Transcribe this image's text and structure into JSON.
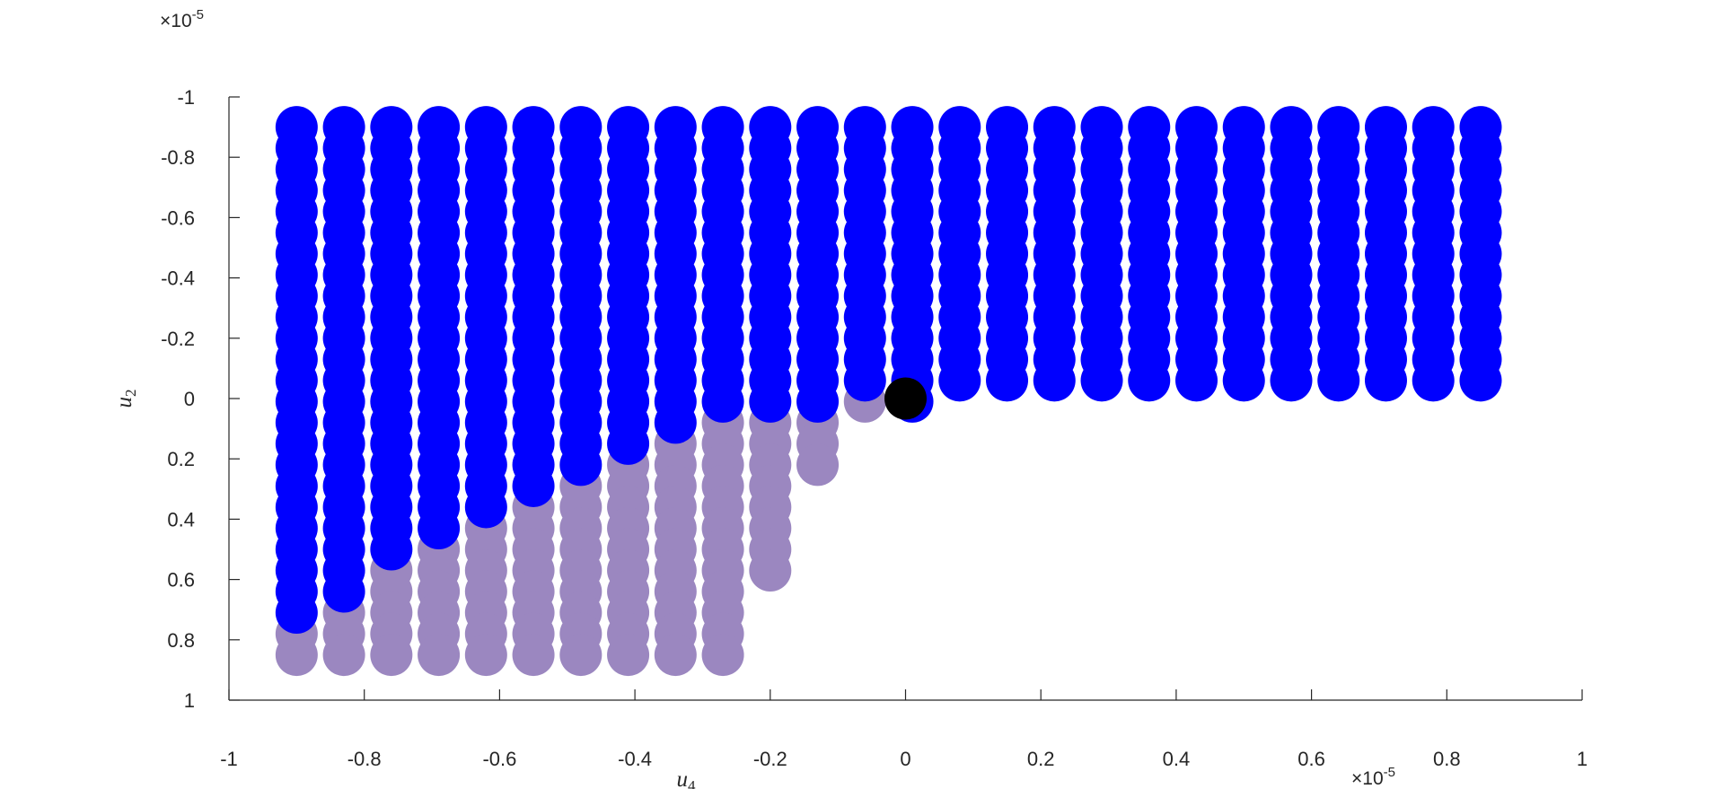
{
  "chart_data": {
    "type": "scatter",
    "x_exponent": {
      "base": "×10",
      "exp": "-5"
    },
    "y_exponent": {
      "base": "×10",
      "exp": "-5"
    },
    "xlabel": {
      "base": "u",
      "sub": "4"
    },
    "ylabel": {
      "base": "u",
      "sub": "2"
    },
    "xlim": [
      -1,
      1
    ],
    "ylim": [
      -1,
      1
    ],
    "y_reversed": true,
    "xticks": [
      -1,
      -0.8,
      -0.6,
      -0.4,
      -0.2,
      0,
      0.2,
      0.4,
      0.6,
      0.8,
      1
    ],
    "yticks": [
      -1,
      -0.8,
      -0.6,
      -0.4,
      -0.2,
      0,
      0.2,
      0.4,
      0.6,
      0.8,
      1
    ],
    "series": [
      {
        "color": "#9b87c0",
        "columns": [
          {
            "x": -0.9,
            "y": [
              0.78,
              0.85
            ]
          },
          {
            "x": -0.83,
            "y": [
              0.71,
              0.78,
              0.85
            ]
          },
          {
            "x": -0.76,
            "y": [
              0.57,
              0.64,
              0.71,
              0.78,
              0.85
            ]
          },
          {
            "x": -0.69,
            "y": [
              0.5,
              0.57,
              0.64,
              0.71,
              0.78,
              0.85
            ]
          },
          {
            "x": -0.62,
            "y": [
              0.43,
              0.5,
              0.57,
              0.64,
              0.71,
              0.78,
              0.85
            ]
          },
          {
            "x": -0.55,
            "y": [
              0.36,
              0.43,
              0.5,
              0.57,
              0.64,
              0.71,
              0.78,
              0.85
            ]
          },
          {
            "x": -0.48,
            "y": [
              0.29,
              0.36,
              0.43,
              0.5,
              0.57,
              0.64,
              0.71,
              0.78,
              0.85
            ]
          },
          {
            "x": -0.41,
            "y": [
              0.22,
              0.29,
              0.36,
              0.43,
              0.5,
              0.57,
              0.64,
              0.71,
              0.78,
              0.85
            ]
          },
          {
            "x": -0.34,
            "y": [
              0.15,
              0.22,
              0.29,
              0.36,
              0.43,
              0.5,
              0.57,
              0.64,
              0.71,
              0.78,
              0.85
            ]
          },
          {
            "x": -0.27,
            "y": [
              0.08,
              0.15,
              0.22,
              0.29,
              0.36,
              0.43,
              0.5,
              0.57,
              0.64,
              0.71,
              0.78,
              0.85
            ]
          },
          {
            "x": -0.2,
            "y": [
              0.08,
              0.15,
              0.22,
              0.29,
              0.36,
              0.43,
              0.5,
              0.57
            ]
          },
          {
            "x": -0.13,
            "y": [
              0.08,
              0.15,
              0.22
            ]
          },
          {
            "x": -0.06,
            "y": [
              0.01
            ]
          }
        ]
      },
      {
        "color": "#0000ff",
        "columns": [
          {
            "x": -0.9,
            "y": [
              -0.9,
              -0.83,
              -0.76,
              -0.69,
              -0.62,
              -0.55,
              -0.48,
              -0.41,
              -0.34,
              -0.27,
              -0.2,
              -0.13,
              -0.06,
              0.01,
              0.08,
              0.15,
              0.22,
              0.29,
              0.36,
              0.43,
              0.5,
              0.57,
              0.64,
              0.71
            ]
          },
          {
            "x": -0.83,
            "y": [
              -0.9,
              -0.83,
              -0.76,
              -0.69,
              -0.62,
              -0.55,
              -0.48,
              -0.41,
              -0.34,
              -0.27,
              -0.2,
              -0.13,
              -0.06,
              0.01,
              0.08,
              0.15,
              0.22,
              0.29,
              0.36,
              0.43,
              0.5,
              0.57,
              0.64
            ]
          },
          {
            "x": -0.76,
            "y": [
              -0.9,
              -0.83,
              -0.76,
              -0.69,
              -0.62,
              -0.55,
              -0.48,
              -0.41,
              -0.34,
              -0.27,
              -0.2,
              -0.13,
              -0.06,
              0.01,
              0.08,
              0.15,
              0.22,
              0.29,
              0.36,
              0.43,
              0.5
            ]
          },
          {
            "x": -0.69,
            "y": [
              -0.9,
              -0.83,
              -0.76,
              -0.69,
              -0.62,
              -0.55,
              -0.48,
              -0.41,
              -0.34,
              -0.27,
              -0.2,
              -0.13,
              -0.06,
              0.01,
              0.08,
              0.15,
              0.22,
              0.29,
              0.36,
              0.43
            ]
          },
          {
            "x": -0.62,
            "y": [
              -0.9,
              -0.83,
              -0.76,
              -0.69,
              -0.62,
              -0.55,
              -0.48,
              -0.41,
              -0.34,
              -0.27,
              -0.2,
              -0.13,
              -0.06,
              0.01,
              0.08,
              0.15,
              0.22,
              0.29,
              0.36
            ]
          },
          {
            "x": -0.55,
            "y": [
              -0.9,
              -0.83,
              -0.76,
              -0.69,
              -0.62,
              -0.55,
              -0.48,
              -0.41,
              -0.34,
              -0.27,
              -0.2,
              -0.13,
              -0.06,
              0.01,
              0.08,
              0.15,
              0.22,
              0.29
            ]
          },
          {
            "x": -0.48,
            "y": [
              -0.9,
              -0.83,
              -0.76,
              -0.69,
              -0.62,
              -0.55,
              -0.48,
              -0.41,
              -0.34,
              -0.27,
              -0.2,
              -0.13,
              -0.06,
              0.01,
              0.08,
              0.15,
              0.22
            ]
          },
          {
            "x": -0.41,
            "y": [
              -0.9,
              -0.83,
              -0.76,
              -0.69,
              -0.62,
              -0.55,
              -0.48,
              -0.41,
              -0.34,
              -0.27,
              -0.2,
              -0.13,
              -0.06,
              0.01,
              0.08,
              0.15
            ]
          },
          {
            "x": -0.34,
            "y": [
              -0.9,
              -0.83,
              -0.76,
              -0.69,
              -0.62,
              -0.55,
              -0.48,
              -0.41,
              -0.34,
              -0.27,
              -0.2,
              -0.13,
              -0.06,
              0.01,
              0.08
            ]
          },
          {
            "x": -0.27,
            "y": [
              -0.9,
              -0.83,
              -0.76,
              -0.69,
              -0.62,
              -0.55,
              -0.48,
              -0.41,
              -0.34,
              -0.27,
              -0.2,
              -0.13,
              -0.06,
              0.01
            ]
          },
          {
            "x": -0.2,
            "y": [
              -0.9,
              -0.83,
              -0.76,
              -0.69,
              -0.62,
              -0.55,
              -0.48,
              -0.41,
              -0.34,
              -0.27,
              -0.2,
              -0.13,
              -0.06,
              0.01
            ]
          },
          {
            "x": -0.13,
            "y": [
              -0.9,
              -0.83,
              -0.76,
              -0.69,
              -0.62,
              -0.55,
              -0.48,
              -0.41,
              -0.34,
              -0.27,
              -0.2,
              -0.13,
              -0.06,
              0.01
            ]
          },
          {
            "x": -0.06,
            "y": [
              -0.9,
              -0.83,
              -0.76,
              -0.69,
              -0.62,
              -0.55,
              -0.48,
              -0.41,
              -0.34,
              -0.27,
              -0.2,
              -0.13,
              -0.06
            ]
          },
          {
            "x": 0.01,
            "y": [
              -0.9,
              -0.83,
              -0.76,
              -0.69,
              -0.62,
              -0.55,
              -0.48,
              -0.41,
              -0.34,
              -0.27,
              -0.2,
              -0.13,
              -0.06,
              0.01
            ]
          },
          {
            "x": 0.08,
            "y": [
              -0.9,
              -0.83,
              -0.76,
              -0.69,
              -0.62,
              -0.55,
              -0.48,
              -0.41,
              -0.34,
              -0.27,
              -0.2,
              -0.13,
              -0.06
            ]
          },
          {
            "x": 0.15,
            "y": [
              -0.9,
              -0.83,
              -0.76,
              -0.69,
              -0.62,
              -0.55,
              -0.48,
              -0.41,
              -0.34,
              -0.27,
              -0.2,
              -0.13,
              -0.06
            ]
          },
          {
            "x": 0.22,
            "y": [
              -0.9,
              -0.83,
              -0.76,
              -0.69,
              -0.62,
              -0.55,
              -0.48,
              -0.41,
              -0.34,
              -0.27,
              -0.2,
              -0.13,
              -0.06
            ]
          },
          {
            "x": 0.29,
            "y": [
              -0.9,
              -0.83,
              -0.76,
              -0.69,
              -0.62,
              -0.55,
              -0.48,
              -0.41,
              -0.34,
              -0.27,
              -0.2,
              -0.13,
              -0.06
            ]
          },
          {
            "x": 0.36,
            "y": [
              -0.9,
              -0.83,
              -0.76,
              -0.69,
              -0.62,
              -0.55,
              -0.48,
              -0.41,
              -0.34,
              -0.27,
              -0.2,
              -0.13,
              -0.06
            ]
          },
          {
            "x": 0.43,
            "y": [
              -0.9,
              -0.83,
              -0.76,
              -0.69,
              -0.62,
              -0.55,
              -0.48,
              -0.41,
              -0.34,
              -0.27,
              -0.2,
              -0.13,
              -0.06
            ]
          },
          {
            "x": 0.5,
            "y": [
              -0.9,
              -0.83,
              -0.76,
              -0.69,
              -0.62,
              -0.55,
              -0.48,
              -0.41,
              -0.34,
              -0.27,
              -0.2,
              -0.13,
              -0.06
            ]
          },
          {
            "x": 0.57,
            "y": [
              -0.9,
              -0.83,
              -0.76,
              -0.69,
              -0.62,
              -0.55,
              -0.48,
              -0.41,
              -0.34,
              -0.27,
              -0.2,
              -0.13,
              -0.06
            ]
          },
          {
            "x": 0.64,
            "y": [
              -0.9,
              -0.83,
              -0.76,
              -0.69,
              -0.62,
              -0.55,
              -0.48,
              -0.41,
              -0.34,
              -0.27,
              -0.2,
              -0.13,
              -0.06
            ]
          },
          {
            "x": 0.71,
            "y": [
              -0.9,
              -0.83,
              -0.76,
              -0.69,
              -0.62,
              -0.55,
              -0.48,
              -0.41,
              -0.34,
              -0.27,
              -0.2,
              -0.13,
              -0.06
            ]
          },
          {
            "x": 0.78,
            "y": [
              -0.9,
              -0.83,
              -0.76,
              -0.69,
              -0.62,
              -0.55,
              -0.48,
              -0.41,
              -0.34,
              -0.27,
              -0.2,
              -0.13,
              -0.06
            ]
          },
          {
            "x": 0.85,
            "y": [
              -0.9,
              -0.83,
              -0.76,
              -0.69,
              -0.62,
              -0.55,
              -0.48,
              -0.41,
              -0.34,
              -0.27,
              -0.2,
              -0.13,
              -0.06
            ]
          }
        ]
      },
      {
        "color": "#000000",
        "columns": [
          {
            "x": 0,
            "y": [
              0
            ]
          }
        ]
      }
    ]
  }
}
